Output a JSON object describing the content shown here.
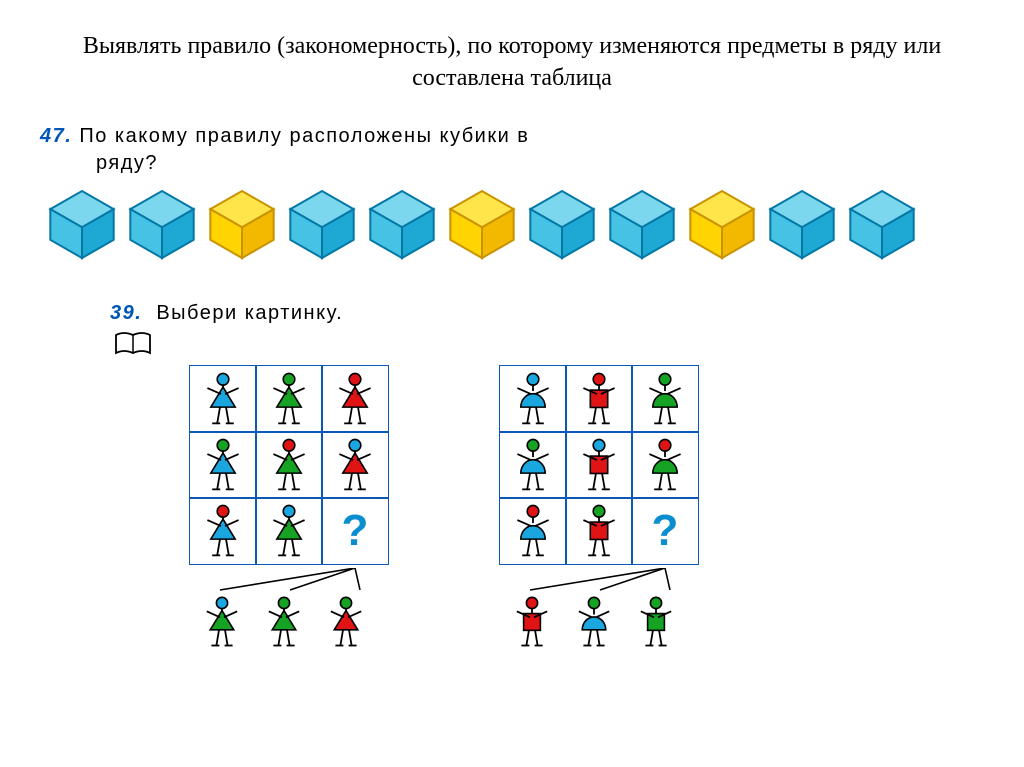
{
  "heading": "Выявлять правило (закономерность), по которому изменяются предметы в ряду или составлена таблица",
  "task47": {
    "number": "47.",
    "text_line1": "По какому правилу расположены кубики в",
    "text_line2": "ряду?",
    "cubes": {
      "colors": [
        "blue",
        "blue",
        "yellow",
        "blue",
        "blue",
        "yellow",
        "blue",
        "blue",
        "yellow",
        "blue",
        "blue"
      ],
      "palette": {
        "blue": {
          "top": "#7ad7ee",
          "left": "#46c3e4",
          "right": "#1ea9d4",
          "edge": "#0577a6"
        },
        "yellow": {
          "top": "#ffe54a",
          "left": "#ffd400",
          "right": "#f3b900",
          "edge": "#c89200"
        }
      },
      "size": 72
    }
  },
  "task39": {
    "number": "39.",
    "text": "Выбери картинку.",
    "qmark": "?",
    "palette": {
      "blue": "#1aa7e0",
      "green": "#16a324",
      "red": "#e01414",
      "stroke": "#000000"
    },
    "gridA": {
      "cells": [
        {
          "head": "blue",
          "body": "blue",
          "shape": "tri"
        },
        {
          "head": "green",
          "body": "green",
          "shape": "tri"
        },
        {
          "head": "red",
          "body": "red",
          "shape": "tri"
        },
        {
          "head": "green",
          "body": "blue",
          "shape": "tri"
        },
        {
          "head": "red",
          "body": "green",
          "shape": "tri"
        },
        {
          "head": "blue",
          "body": "red",
          "shape": "tri"
        },
        {
          "head": "red",
          "body": "blue",
          "shape": "tri"
        },
        {
          "head": "blue",
          "body": "green",
          "shape": "tri"
        },
        {
          "q": true
        }
      ],
      "choices": [
        {
          "head": "blue",
          "body": "green",
          "shape": "tri"
        },
        {
          "head": "green",
          "body": "green",
          "shape": "tri"
        },
        {
          "head": "green",
          "body": "red",
          "shape": "tri"
        }
      ]
    },
    "gridB": {
      "cells": [
        {
          "head": "blue",
          "body": "blue",
          "shape": "semi"
        },
        {
          "head": "red",
          "body": "red",
          "shape": "square"
        },
        {
          "head": "green",
          "body": "green",
          "shape": "semi"
        },
        {
          "head": "green",
          "body": "blue",
          "shape": "semi"
        },
        {
          "head": "blue",
          "body": "red",
          "shape": "square"
        },
        {
          "head": "red",
          "body": "green",
          "shape": "semi"
        },
        {
          "head": "red",
          "body": "blue",
          "shape": "semi"
        },
        {
          "head": "green",
          "body": "red",
          "shape": "square"
        },
        {
          "q": true
        }
      ],
      "choices": [
        {
          "head": "red",
          "body": "red",
          "shape": "square"
        },
        {
          "head": "green",
          "body": "blue",
          "shape": "semi"
        },
        {
          "head": "green",
          "body": "green",
          "shape": "square"
        }
      ]
    }
  }
}
